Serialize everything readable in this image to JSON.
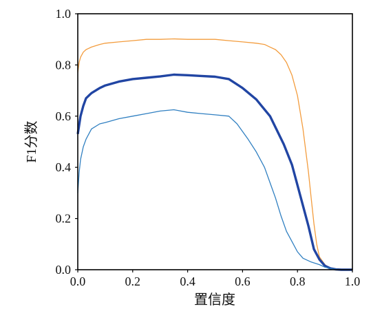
{
  "chart_data": {
    "type": "line",
    "title": "",
    "xlabel": "置信度",
    "ylabel": "F1分数",
    "xlim": [
      0,
      1
    ],
    "ylim": [
      0,
      1
    ],
    "xticks": [
      "0.0",
      "0.2",
      "0.4",
      "0.6",
      "0.8",
      "1.0"
    ],
    "yticks": [
      "0.0",
      "0.2",
      "0.4",
      "0.6",
      "0.8",
      "1.0"
    ],
    "grid": false,
    "legend": "none",
    "series": [
      {
        "color": "#f39c3d",
        "line": "thin",
        "x": [
          0,
          0.005,
          0.01,
          0.02,
          0.03,
          0.05,
          0.08,
          0.1,
          0.15,
          0.2,
          0.25,
          0.3,
          0.35,
          0.4,
          0.45,
          0.5,
          0.55,
          0.6,
          0.65,
          0.68,
          0.7,
          0.72,
          0.74,
          0.76,
          0.78,
          0.8,
          0.82,
          0.84,
          0.85,
          0.86,
          0.87,
          0.88,
          0.9,
          0.92,
          0.95,
          1.0
        ],
        "y": [
          0.77,
          0.81,
          0.83,
          0.85,
          0.86,
          0.87,
          0.88,
          0.885,
          0.89,
          0.895,
          0.9,
          0.9,
          0.902,
          0.9,
          0.9,
          0.9,
          0.895,
          0.89,
          0.885,
          0.88,
          0.87,
          0.86,
          0.84,
          0.81,
          0.76,
          0.68,
          0.55,
          0.38,
          0.28,
          0.18,
          0.1,
          0.05,
          0.02,
          0.005,
          0,
          0
        ]
      },
      {
        "color": "#2145a3",
        "line": "thick",
        "x": [
          0,
          0.01,
          0.02,
          0.03,
          0.05,
          0.08,
          0.1,
          0.15,
          0.2,
          0.25,
          0.3,
          0.35,
          0.4,
          0.45,
          0.5,
          0.55,
          0.6,
          0.65,
          0.7,
          0.75,
          0.78,
          0.8,
          0.82,
          0.84,
          0.86,
          0.88,
          0.9,
          0.92,
          0.94,
          0.96,
          1.0
        ],
        "y": [
          0.53,
          0.6,
          0.64,
          0.67,
          0.69,
          0.71,
          0.72,
          0.735,
          0.745,
          0.75,
          0.755,
          0.762,
          0.76,
          0.757,
          0.754,
          0.745,
          0.71,
          0.665,
          0.6,
          0.49,
          0.41,
          0.33,
          0.25,
          0.17,
          0.08,
          0.04,
          0.015,
          0.005,
          0.001,
          0,
          0
        ]
      },
      {
        "color": "#2f7fc1",
        "line": "thin",
        "x": [
          0,
          0.005,
          0.01,
          0.02,
          0.03,
          0.05,
          0.08,
          0.1,
          0.15,
          0.2,
          0.25,
          0.3,
          0.35,
          0.4,
          0.45,
          0.5,
          0.55,
          0.58,
          0.6,
          0.62,
          0.65,
          0.68,
          0.7,
          0.72,
          0.74,
          0.76,
          0.78,
          0.8,
          0.82,
          0.85,
          0.88,
          0.9,
          0.93,
          0.96,
          1.0
        ],
        "y": [
          0.3,
          0.38,
          0.43,
          0.48,
          0.51,
          0.55,
          0.57,
          0.575,
          0.59,
          0.6,
          0.61,
          0.62,
          0.625,
          0.615,
          0.61,
          0.605,
          0.6,
          0.57,
          0.54,
          0.51,
          0.46,
          0.4,
          0.34,
          0.28,
          0.21,
          0.15,
          0.11,
          0.07,
          0.045,
          0.03,
          0.02,
          0.01,
          0.003,
          0,
          0
        ]
      }
    ]
  }
}
